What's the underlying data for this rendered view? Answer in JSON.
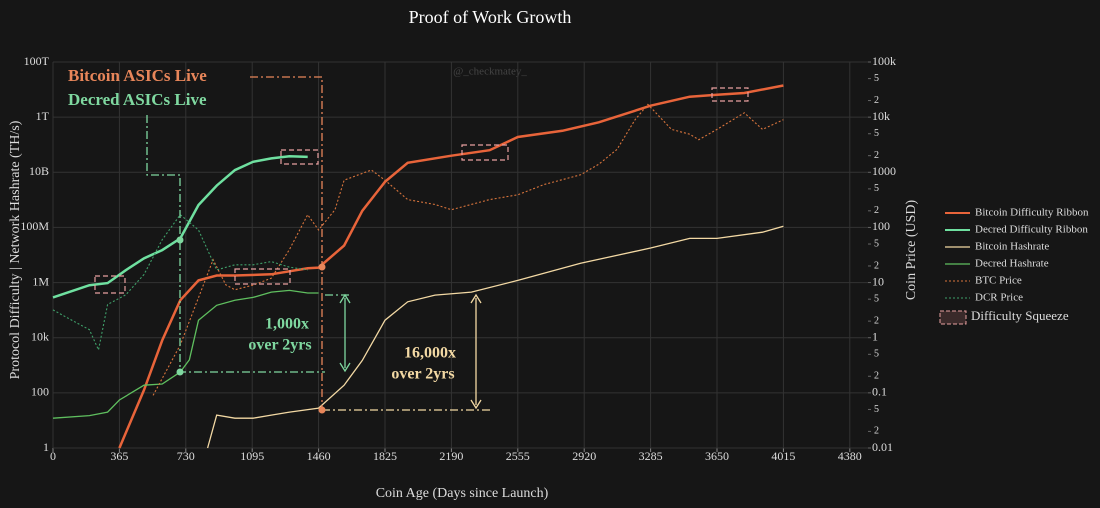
{
  "chart_data": {
    "type": "line",
    "title": "Proof of Work Growth",
    "x_label": "Coin Age (Days since Launch)",
    "y_label": "Protocol Difficulty  |  Network Hashrate (TH/s)",
    "y2_label": "Coin Price (USD)",
    "watermark": "@_checkmatey_",
    "log_y": true,
    "log_y2": true,
    "grid": true,
    "legend_position": "right",
    "xlim": [
      0,
      4480
    ],
    "xticks": [
      0,
      365,
      730,
      1095,
      1460,
      1825,
      2190,
      2555,
      2920,
      3285,
      3650,
      4015,
      4380
    ],
    "ylim": [
      1,
      100000000000000
    ],
    "yticks": [
      1,
      100,
      {
        "value": 10000,
        "label": "10k"
      },
      {
        "value": 1000000,
        "label": "1M"
      },
      {
        "value": 100000000,
        "label": "100M"
      },
      {
        "value": 10000000000,
        "label": "10B"
      },
      {
        "value": 1000000000000,
        "label": "1T"
      },
      {
        "value": 100000000000000,
        "label": "100T"
      }
    ],
    "y2lim": [
      0.01,
      100000
    ],
    "y2ticks": [
      0.01,
      {
        "value": 0.02,
        "label": "2"
      },
      {
        "value": 0.05,
        "label": "5"
      },
      0.1,
      {
        "value": 0.2,
        "label": "2"
      },
      {
        "value": 0.5,
        "label": "5"
      },
      1,
      {
        "value": 2,
        "label": "2"
      },
      {
        "value": 5,
        "label": "5"
      },
      10,
      {
        "value": 20,
        "label": "2"
      },
      {
        "value": 50,
        "label": "5"
      },
      100,
      {
        "value": 200,
        "label": "2"
      },
      {
        "value": 500,
        "label": "5"
      },
      1000,
      {
        "value": 2000,
        "label": "2"
      },
      {
        "value": 5000,
        "label": "5"
      },
      {
        "value": 10000,
        "label": "10k"
      },
      {
        "value": 20000,
        "label": "2"
      },
      {
        "value": 50000,
        "label": "5"
      },
      {
        "value": 100000,
        "label": "100k"
      }
    ],
    "series": [
      {
        "name": "Bitcoin Difficulty Ribbon",
        "color": "#e8643a",
        "width": 2.5,
        "style": "solid",
        "x": [
          365,
          500,
          600,
          700,
          800,
          900,
          1000,
          1200,
          1400,
          1460,
          1600,
          1700,
          1825,
          1950,
          2190,
          2400,
          2555,
          2800,
          3000,
          3285,
          3500,
          3650,
          3800,
          4015
        ],
        "values": [
          1,
          127,
          8000,
          230000,
          1200000,
          1800000,
          1800000,
          2000000,
          3300000,
          3500000,
          22000000,
          400000000,
          4500000000,
          22000000000,
          40000000000,
          63000000000,
          190000000000,
          320000000000,
          650000000000,
          2600000000000,
          5500000000000,
          6500000000000,
          7500000000000,
          14000000000000
        ]
      },
      {
        "name": "Decred Difficulty Ribbon",
        "color": "#6fe0a0",
        "width": 2.5,
        "style": "solid",
        "x": [
          0,
          200,
          300,
          400,
          500,
          600,
          700,
          800,
          900,
          1000,
          1100,
          1200,
          1300,
          1400
        ],
        "values": [
          290000,
          800000,
          960000,
          2800000,
          7600000,
          15000000,
          40000000,
          650000000,
          3300000000,
          12000000000,
          24000000000,
          32000000000,
          38000000000,
          36000000000
        ]
      },
      {
        "name": "Bitcoin Hashrate",
        "color": "#f3d9a4",
        "width": 1.3,
        "style": "solid",
        "x": [
          850,
          900,
          1000,
          1100,
          1200,
          1300,
          1460,
          1600,
          1700,
          1825,
          1950,
          2100,
          2300,
          2555,
          2900,
          3285,
          3500,
          3650,
          3900,
          4015
        ],
        "values": [
          1,
          15.6,
          12,
          12,
          15.6,
          20,
          28,
          190,
          1500,
          43000,
          200000,
          350000,
          450000,
          1200000,
          5000000,
          18000000,
          40000000,
          40000000,
          67000000,
          110000000
        ]
      },
      {
        "name": "Decred Hashrate",
        "color": "#5fbf5f",
        "width": 1.3,
        "style": "solid",
        "x": [
          0,
          200,
          300,
          365,
          500,
          600,
          700,
          750,
          800,
          900,
          1000,
          1100,
          1200,
          1300,
          1400,
          1460
        ],
        "values": [
          12,
          15,
          20,
          55,
          190,
          210,
          570,
          1600,
          43000,
          150000,
          230000,
          290000,
          450000,
          520000,
          420000,
          420000
        ]
      },
      {
        "name": "BTC Price",
        "color": "#d8743c",
        "width": 1.1,
        "style": "dotted",
        "axis": "y2",
        "x": [
          550,
          700,
          880,
          950,
          1000,
          1100,
          1200,
          1300,
          1400,
          1460,
          1550,
          1600,
          1750,
          1825,
          1950,
          2100,
          2190,
          2400,
          2555,
          2700,
          2900,
          3000,
          3100,
          3200,
          3270,
          3400,
          3500,
          3550,
          3650,
          3800,
          3900,
          4015
        ],
        "values": [
          0.09,
          0.74,
          26,
          9.1,
          7.4,
          9,
          12,
          40,
          170,
          90,
          210,
          720,
          1100,
          720,
          320,
          260,
          210,
          320,
          390,
          600,
          900,
          1400,
          2600,
          9000,
          17000,
          6000,
          4900,
          3900,
          6000,
          12000,
          6000,
          9000
        ]
      },
      {
        "name": "DCR Price",
        "color": "#3fa06a",
        "width": 1.1,
        "style": "dotted",
        "axis": "y2",
        "x": [
          0,
          100,
          200,
          250,
          300,
          400,
          500,
          600,
          700,
          800,
          900,
          1000,
          1100,
          1200,
          1300,
          1400
        ],
        "values": [
          3.2,
          2.1,
          1.4,
          0.6,
          4,
          6,
          14,
          60,
          170,
          90,
          17,
          21,
          21,
          24,
          19,
          17
        ]
      }
    ],
    "squeeze_legend": "Difficulty Squeeze",
    "annotations": [
      {
        "text": "Bitcoin ASICs Live",
        "color": "#e8865a"
      },
      {
        "text": "Decred ASICs Live",
        "color": "#7fd8a0"
      },
      {
        "text": "1,000x",
        "color": "#7fd8a0"
      },
      {
        "text": "over 2yrs",
        "color": "#7fd8a0"
      },
      {
        "text": "16,000x",
        "color": "#f3d9a4"
      },
      {
        "text": "over 2yrs",
        "color": "#f3d9a4"
      }
    ]
  }
}
